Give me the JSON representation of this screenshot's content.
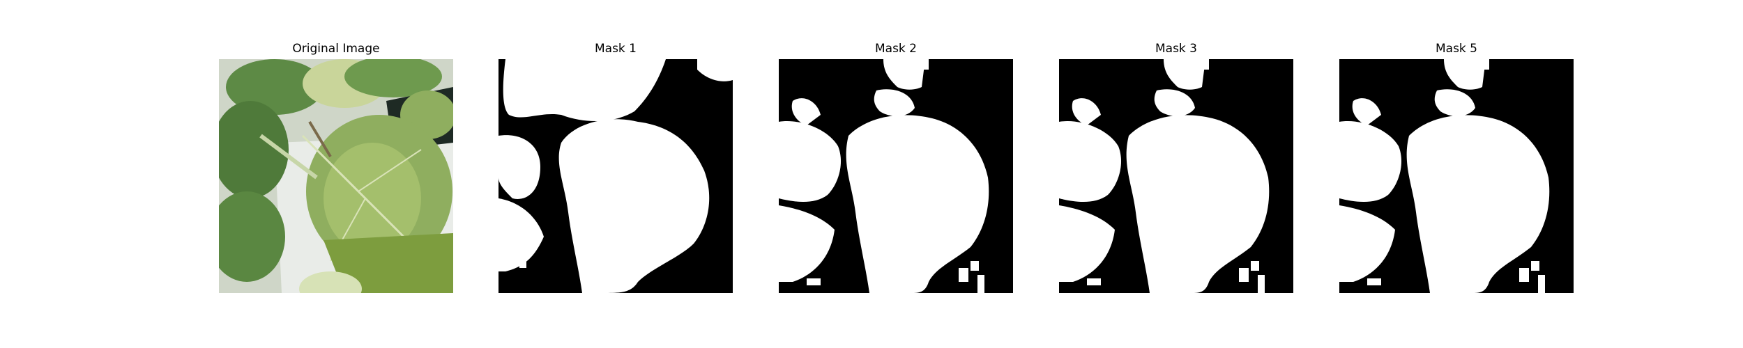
{
  "panels": [
    {
      "title": "Original Image",
      "kind": "photo"
    },
    {
      "title": "Mask 1",
      "kind": "mask",
      "variant": 1
    },
    {
      "title": "Mask 2",
      "kind": "mask",
      "variant": 2
    },
    {
      "title": "Mask 3",
      "kind": "mask",
      "variant": 3
    },
    {
      "title": "Mask 5",
      "kind": "mask",
      "variant": 5
    }
  ],
  "colors": {
    "mask_background": "#000000",
    "mask_foreground": "#ffffff",
    "leaf_dark": "#4f7a3a",
    "leaf_mid": "#6e9a4e",
    "leaf_light": "#a9c36f",
    "pot_white": "#e9ece8",
    "shadow": "#1e2a24"
  }
}
